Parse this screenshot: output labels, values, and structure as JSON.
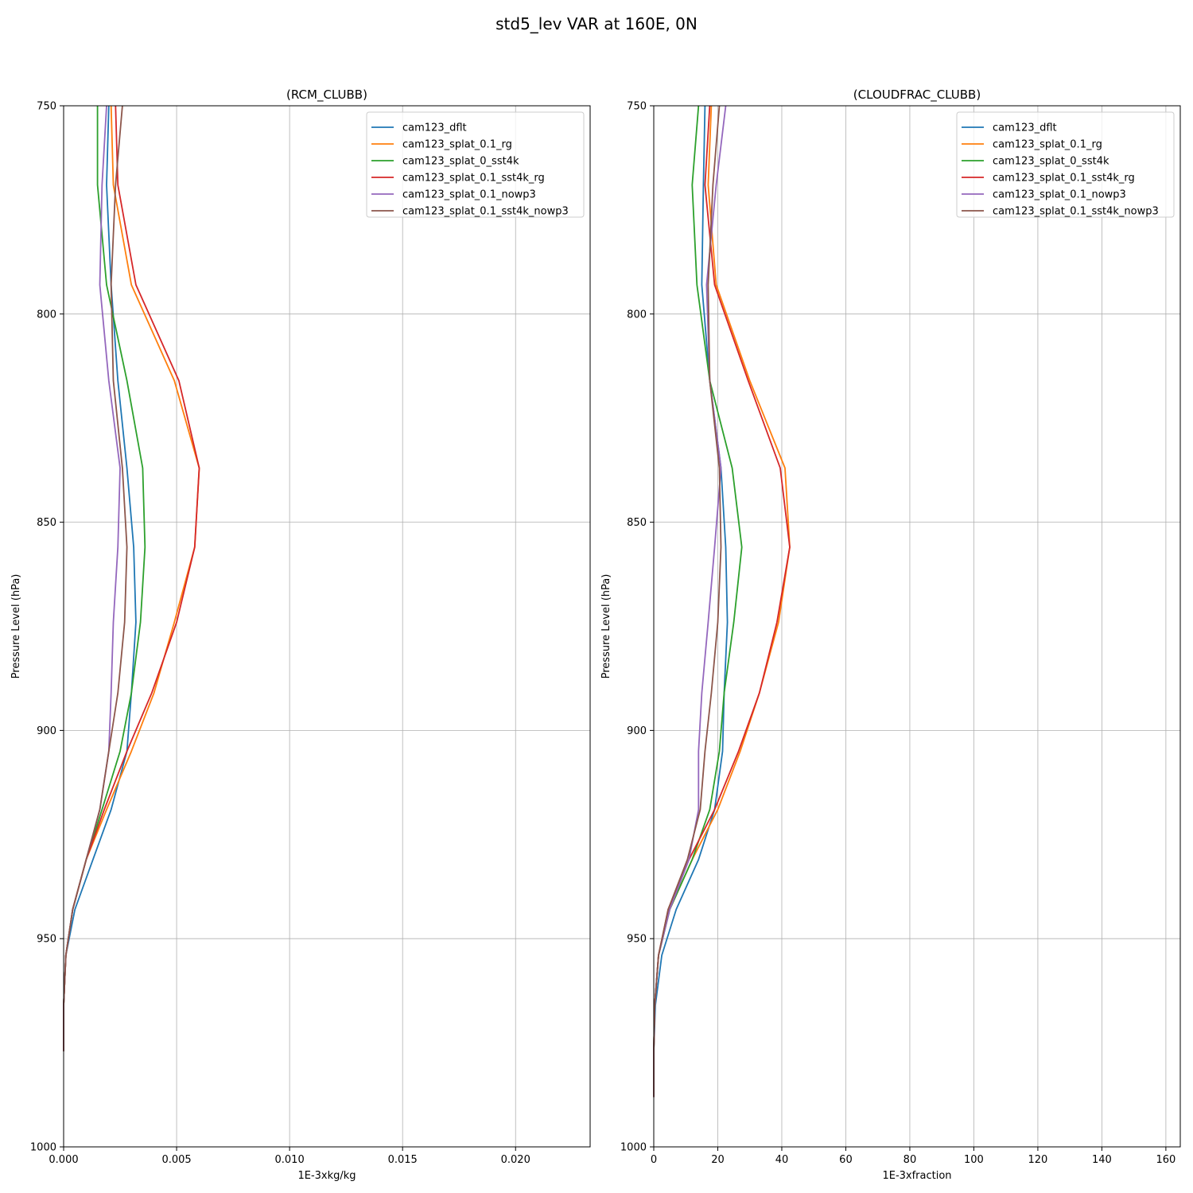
{
  "figure": {
    "suptitle": "std5_lev VAR at 160E, 0N"
  },
  "chart_data": [
    {
      "type": "line",
      "title": "(RCM_CLUBB)",
      "xlabel": "1E-3xkg/kg",
      "ylabel": "Pressure Level (hPa)",
      "xlim": [
        0,
        0.0233
      ],
      "ylim": [
        1000,
        750
      ],
      "y_inverted": true,
      "xticks": [
        0.0,
        0.005,
        0.01,
        0.015,
        0.02
      ],
      "xtick_labels": [
        "0.000",
        "0.005",
        "0.010",
        "0.015",
        "0.020"
      ],
      "yticks": [
        750,
        800,
        850,
        900,
        950,
        1000
      ],
      "ytick_labels": [
        "750",
        "800",
        "850",
        "900",
        "950",
        "1000"
      ],
      "grid": true,
      "legend_position": "upper right",
      "series": [
        {
          "name": "cam123_dflt",
          "color": "#1f77b4",
          "points": [
            [
              0.002,
              750
            ],
            [
              0.0019,
              769
            ],
            [
              0.0021,
              793
            ],
            [
              0.0024,
              816
            ],
            [
              0.0028,
              837
            ],
            [
              0.0031,
              856
            ],
            [
              0.0032,
              874
            ],
            [
              0.003,
              891
            ],
            [
              0.0028,
              905
            ],
            [
              0.0021,
              919
            ],
            [
              0.0013,
              931
            ],
            [
              0.0005,
              943
            ],
            [
              0.0001,
              954
            ],
            [
              0.0,
              966
            ],
            [
              0.0,
              977
            ]
          ]
        },
        {
          "name": "cam123_splat_0.1_rg",
          "color": "#ff7f0e",
          "points": [
            [
              0.0021,
              750
            ],
            [
              0.0022,
              769
            ],
            [
              0.003,
              793
            ],
            [
              0.0049,
              816
            ],
            [
              0.006,
              837
            ],
            [
              0.0058,
              856
            ],
            [
              0.0049,
              874
            ],
            [
              0.004,
              891
            ],
            [
              0.003,
              905
            ],
            [
              0.0019,
              919
            ],
            [
              0.001,
              931
            ],
            [
              0.0004,
              943
            ],
            [
              0.0001,
              954
            ],
            [
              0.0,
              966
            ],
            [
              0.0,
              977
            ]
          ]
        },
        {
          "name": "cam123_splat_0_sst4k",
          "color": "#2ca02c",
          "points": [
            [
              0.0015,
              750
            ],
            [
              0.0015,
              769
            ],
            [
              0.0019,
              793
            ],
            [
              0.0028,
              816
            ],
            [
              0.0035,
              837
            ],
            [
              0.0036,
              856
            ],
            [
              0.0034,
              874
            ],
            [
              0.003,
              891
            ],
            [
              0.0025,
              905
            ],
            [
              0.0017,
              919
            ],
            [
              0.001,
              931
            ],
            [
              0.0004,
              943
            ],
            [
              0.0001,
              954
            ],
            [
              0.0,
              966
            ],
            [
              0.0,
              977
            ]
          ]
        },
        {
          "name": "cam123_splat_0.1_sst4k_rg",
          "color": "#d62728",
          "points": [
            [
              0.0023,
              750
            ],
            [
              0.0024,
              769
            ],
            [
              0.0032,
              793
            ],
            [
              0.0051,
              816
            ],
            [
              0.006,
              837
            ],
            [
              0.0058,
              856
            ],
            [
              0.005,
              874
            ],
            [
              0.0039,
              891
            ],
            [
              0.0028,
              905
            ],
            [
              0.0018,
              919
            ],
            [
              0.001,
              931
            ],
            [
              0.0004,
              943
            ],
            [
              0.0001,
              954
            ],
            [
              0.0,
              966
            ],
            [
              0.0,
              977
            ]
          ]
        },
        {
          "name": "cam123_splat_0.1_nowp3",
          "color": "#9467bd",
          "points": [
            [
              0.0019,
              750
            ],
            [
              0.0017,
              769
            ],
            [
              0.0016,
              793
            ],
            [
              0.002,
              816
            ],
            [
              0.0025,
              837
            ],
            [
              0.0024,
              856
            ],
            [
              0.0022,
              874
            ],
            [
              0.0021,
              891
            ],
            [
              0.002,
              905
            ],
            [
              0.0016,
              919
            ],
            [
              0.001,
              931
            ],
            [
              0.0004,
              943
            ],
            [
              0.0001,
              954
            ],
            [
              0.0,
              966
            ],
            [
              0.0,
              977
            ]
          ]
        },
        {
          "name": "cam123_splat_0.1_sst4k_nowp3",
          "color": "#8c564b",
          "points": [
            [
              0.0026,
              750
            ],
            [
              0.0023,
              769
            ],
            [
              0.0021,
              793
            ],
            [
              0.0022,
              816
            ],
            [
              0.0026,
              837
            ],
            [
              0.0028,
              856
            ],
            [
              0.0027,
              874
            ],
            [
              0.0024,
              891
            ],
            [
              0.002,
              905
            ],
            [
              0.0016,
              919
            ],
            [
              0.001,
              931
            ],
            [
              0.0004,
              943
            ],
            [
              0.0001,
              954
            ],
            [
              0.0,
              966
            ],
            [
              0.0,
              977
            ]
          ]
        }
      ]
    },
    {
      "type": "line",
      "title": "(CLOUDFRAC_CLUBB)",
      "xlabel": "1E-3xfraction",
      "ylabel": "Pressure Level (hPa)",
      "xlim": [
        0,
        164.5
      ],
      "ylim": [
        1000,
        750
      ],
      "y_inverted": true,
      "xticks": [
        0,
        20,
        40,
        60,
        80,
        100,
        120,
        140,
        160
      ],
      "xtick_labels": [
        "0",
        "20",
        "40",
        "60",
        "80",
        "100",
        "120",
        "140",
        "160"
      ],
      "yticks": [
        750,
        800,
        850,
        900,
        950,
        1000
      ],
      "ytick_labels": [
        "750",
        "800",
        "850",
        "900",
        "950",
        "1000"
      ],
      "grid": true,
      "legend_position": "upper right",
      "series": [
        {
          "name": "cam123_dflt",
          "color": "#1f77b4",
          "points": [
            [
              16,
              750
            ],
            [
              15.5,
              769
            ],
            [
              15,
              793
            ],
            [
              17.5,
              816
            ],
            [
              21,
              837
            ],
            [
              22.5,
              856
            ],
            [
              23,
              874
            ],
            [
              22,
              891
            ],
            [
              21.5,
              905
            ],
            [
              19,
              919
            ],
            [
              14,
              931
            ],
            [
              7,
              943
            ],
            [
              2.5,
              954
            ],
            [
              0.5,
              966
            ],
            [
              0,
              977
            ],
            [
              0,
              988
            ]
          ]
        },
        {
          "name": "cam123_splat_0.1_rg",
          "color": "#ff7f0e",
          "points": [
            [
              18,
              750
            ],
            [
              17,
              769
            ],
            [
              19.5,
              793
            ],
            [
              30,
              816
            ],
            [
              41,
              837
            ],
            [
              42.5,
              856
            ],
            [
              39,
              874
            ],
            [
              33,
              891
            ],
            [
              27,
              905
            ],
            [
              20,
              919
            ],
            [
              12,
              931
            ],
            [
              5,
              943
            ],
            [
              1.5,
              954
            ],
            [
              0.3,
              966
            ],
            [
              0,
              977
            ],
            [
              0,
              988
            ]
          ]
        },
        {
          "name": "cam123_splat_0_sst4k",
          "color": "#2ca02c",
          "points": [
            [
              14,
              750
            ],
            [
              12,
              769
            ],
            [
              13.5,
              793
            ],
            [
              17.5,
              816
            ],
            [
              24.5,
              837
            ],
            [
              27.5,
              856
            ],
            [
              25,
              874
            ],
            [
              22,
              891
            ],
            [
              20.5,
              905
            ],
            [
              17.5,
              919
            ],
            [
              12,
              931
            ],
            [
              5,
              943
            ],
            [
              1.5,
              954
            ],
            [
              0.3,
              966
            ],
            [
              0,
              977
            ],
            [
              0,
              988
            ]
          ]
        },
        {
          "name": "cam123_splat_0.1_sst4k_rg",
          "color": "#d62728",
          "points": [
            [
              17.5,
              750
            ],
            [
              16,
              769
            ],
            [
              19,
              793
            ],
            [
              29.5,
              816
            ],
            [
              39.5,
              837
            ],
            [
              42.5,
              856
            ],
            [
              38.5,
              874
            ],
            [
              33,
              891
            ],
            [
              26.5,
              905
            ],
            [
              19,
              919
            ],
            [
              11,
              931
            ],
            [
              4.5,
              943
            ],
            [
              1.5,
              954
            ],
            [
              0.3,
              966
            ],
            [
              0,
              977
            ],
            [
              0,
              988
            ]
          ]
        },
        {
          "name": "cam123_splat_0.1_nowp3",
          "color": "#9467bd",
          "points": [
            [
              22.5,
              750
            ],
            [
              19.5,
              769
            ],
            [
              16.5,
              793
            ],
            [
              17.5,
              816
            ],
            [
              21,
              837
            ],
            [
              19,
              856
            ],
            [
              17,
              874
            ],
            [
              15,
              891
            ],
            [
              14,
              905
            ],
            [
              14,
              919
            ],
            [
              11,
              931
            ],
            [
              5,
              943
            ],
            [
              1.5,
              954
            ],
            [
              0.3,
              966
            ],
            [
              0,
              977
            ],
            [
              0,
              988
            ]
          ]
        },
        {
          "name": "cam123_splat_0.1_sst4k_nowp3",
          "color": "#8c564b",
          "points": [
            [
              20.5,
              750
            ],
            [
              18.5,
              769
            ],
            [
              17,
              793
            ],
            [
              17.5,
              816
            ],
            [
              20.5,
              837
            ],
            [
              21,
              856
            ],
            [
              20,
              874
            ],
            [
              18,
              891
            ],
            [
              16,
              905
            ],
            [
              14.5,
              919
            ],
            [
              10.5,
              931
            ],
            [
              4.5,
              943
            ],
            [
              1.5,
              954
            ],
            [
              0.3,
              966
            ],
            [
              0,
              977
            ],
            [
              0,
              988
            ]
          ]
        }
      ]
    }
  ]
}
